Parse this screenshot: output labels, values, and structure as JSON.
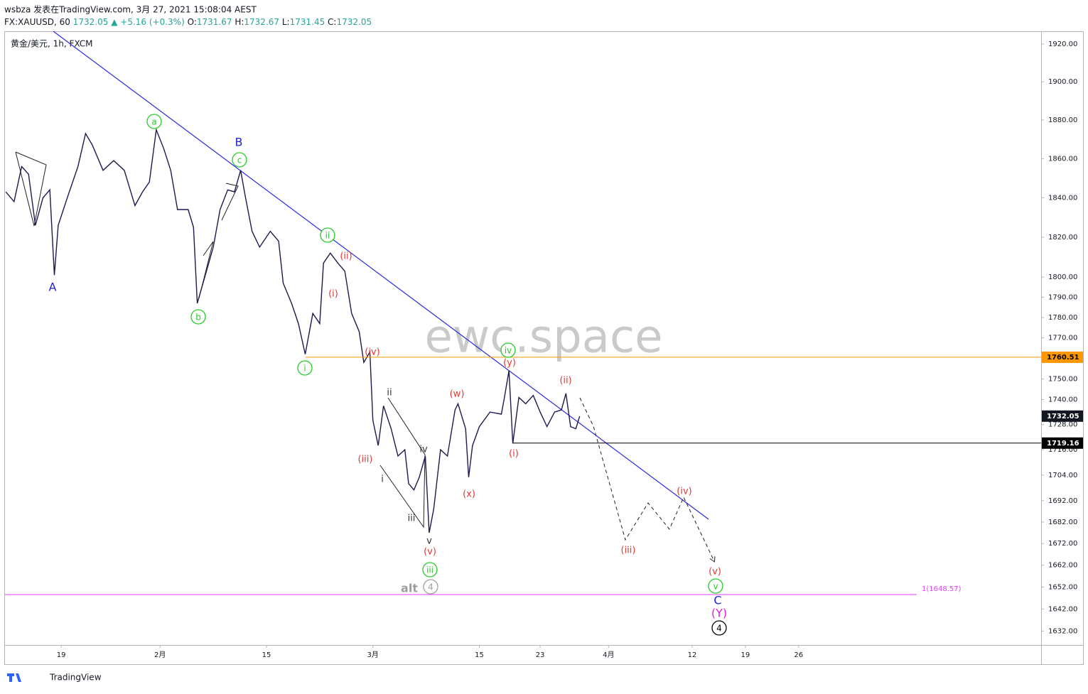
{
  "header": {
    "publisher": "wsbza 发表在TradingView.com, 3月 27, 2021 15:08:04 AEST",
    "symbol": "FX:XAUUSD, 60",
    "last": "1732.05",
    "change": "+5.16 (+0.3%)",
    "ohlc": [
      {
        "label": "O:",
        "value": "1731.67"
      },
      {
        "label": "H:",
        "value": "1732.67"
      },
      {
        "label": "L:",
        "value": "1731.45"
      },
      {
        "label": "C:",
        "value": "1732.05"
      }
    ]
  },
  "footer": {
    "brand": "TradingView"
  },
  "chart_data": {
    "type": "line",
    "title": "黄金/美元, 1h, FXCM",
    "watermark": "ewc.space",
    "color": "#1c1a4f",
    "log_scale": true,
    "grid": false,
    "x": [
      11.7,
      12.8,
      13.8,
      14.7,
      15.6,
      16.6,
      17.5,
      18.1,
      18.6,
      19.8,
      21.2,
      22.2,
      23.1,
      24.5,
      25.9,
      27.3,
      28.7,
      29.7,
      30.6,
      31.5,
      32.5,
      33.4,
      34.3,
      35.7,
      36.4,
      36.9,
      38.1,
      39.0,
      39.9,
      40.9,
      41.8,
      42.6,
      43.2,
      44.1,
      45.1,
      46.5,
      47.6,
      48.2,
      49.3,
      50.2,
      51.1,
      52.1,
      53.0,
      53.5,
      54.4,
      55.4,
      56.3,
      57.2,
      58.2,
      58.8,
      59.6,
      60.0,
      60.7,
      61.4,
      62.4,
      63.3,
      64.2,
      64.7,
      65.4,
      66.1,
      66.9,
      67.4,
      68.0,
      68.9,
      69.8,
      70.8,
      71.2,
      72.2,
      72.6,
      73.1,
      74.0,
      75.4,
      76.9,
      77.3,
      77.9,
      78.4,
      79.2,
      80.1,
      81.1,
      82.0,
      82.9,
      83.9,
      84.8,
      85.4,
      86.0,
      86.7,
      87.2
    ],
    "values": [
      1843,
      1838,
      1856,
      1852,
      1826,
      1840,
      1844,
      1801,
      1826,
      1840,
      1856,
      1873,
      1867,
      1854,
      1859,
      1854,
      1836,
      1843,
      1848,
      1875,
      1865,
      1854,
      1834,
      1834,
      1825,
      1787,
      1803,
      1815,
      1834,
      1844,
      1843,
      1854,
      1841,
      1823,
      1815,
      1823,
      1818,
      1797,
      1787,
      1777,
      1762,
      1782,
      1777,
      1807,
      1812,
      1807,
      1803,
      1782,
      1773,
      1758,
      1763,
      1730,
      1718,
      1737,
      1726,
      1713,
      1716,
      1700,
      1697,
      1703,
      1713,
      1677,
      1688,
      1716,
      1713,
      1735,
      1738,
      1726,
      1703,
      1718,
      1727,
      1734,
      1733,
      1741,
      1754,
      1719,
      1741,
      1738,
      1742,
      1734,
      1727,
      1734,
      1735,
      1743,
      1727,
      1726,
      1732
    ],
    "xlim": [
      11.6,
      147.9
    ],
    "ylim": [
      1625.7,
      1926.8
    ],
    "xticks": [
      19,
      {
        "value": 32,
        "label": "2月"
      },
      {
        "value": 46,
        "label": "15"
      },
      {
        "value": 60,
        "label": "3月"
      },
      {
        "value": 74,
        "label": "15"
      },
      {
        "value": 82,
        "label": "23"
      },
      {
        "value": 91,
        "label": "4月"
      },
      {
        "value": 102,
        "label": "12"
      },
      {
        "value": 109,
        "label": "19"
      },
      {
        "value": 116,
        "label": "26"
      }
    ],
    "yticks": [
      {
        "value": 1920,
        "label": "1920.00"
      },
      {
        "value": 1900,
        "label": "1900.00"
      },
      {
        "value": 1880,
        "label": "1880.00"
      },
      {
        "value": 1860,
        "label": "1860.00"
      },
      {
        "value": 1840,
        "label": "1840.00"
      },
      {
        "value": 1820,
        "label": "1820.00"
      },
      {
        "value": 1800,
        "label": "1800.00"
      },
      {
        "value": 1790,
        "label": "1790.00"
      },
      {
        "value": 1780,
        "label": "1780.00"
      },
      {
        "value": 1770,
        "label": "1770.00"
      },
      {
        "value": 1750,
        "label": "1750.00"
      },
      {
        "value": 1740,
        "label": "1740.00"
      },
      {
        "value": 1728,
        "label": "1728.00"
      },
      {
        "value": 1716,
        "label": "1716.00"
      },
      {
        "value": 1704,
        "label": "1704.00"
      },
      {
        "value": 1692,
        "label": "1692.00"
      },
      {
        "value": 1682,
        "label": "1682.00"
      },
      {
        "value": 1672,
        "label": "1672.00"
      },
      {
        "value": 1662,
        "label": "1662.00"
      },
      {
        "value": 1652,
        "label": "1652.00"
      },
      {
        "value": 1642,
        "label": "1642.00"
      },
      {
        "value": 1632,
        "label": "1632.00"
      }
    ],
    "hlines": [
      {
        "value": 1760.51,
        "color": "#ff9800"
      },
      {
        "value": 1719.16,
        "color": "#000000"
      },
      {
        "value": 1648.57,
        "color": "#e040fb",
        "label": "1(1648.57)"
      }
    ],
    "last_price": 1732.05,
    "annotations": [
      {
        "text": "A",
        "color": "#1f1fe0"
      },
      {
        "text": "B",
        "color": "#1f1fe0"
      },
      {
        "text": "C",
        "color": "#1f1fe0"
      },
      {
        "text": "a",
        "color": "#22cc22",
        "circled": true
      },
      {
        "text": "b",
        "color": "#22cc22",
        "circled": true
      },
      {
        "text": "c",
        "color": "#22cc22",
        "circled": true
      },
      {
        "text": "i",
        "color": "#22cc22",
        "circled": true
      },
      {
        "text": "ii",
        "color": "#22cc22",
        "circled": true
      },
      {
        "text": "iii",
        "color": "#22cc22",
        "circled": true
      },
      {
        "text": "iv",
        "color": "#22cc22",
        "circled": true
      },
      {
        "text": "v",
        "color": "#22cc22",
        "circled": true
      },
      {
        "text": "(i)",
        "color": "#e53935"
      },
      {
        "text": "(ii)",
        "color": "#e53935"
      },
      {
        "text": "(iv)",
        "color": "#e53935"
      },
      {
        "text": "(iii)",
        "color": "#e53935"
      },
      {
        "text": "(v)",
        "color": "#e53935"
      },
      {
        "text": "(w)",
        "color": "#e53935"
      },
      {
        "text": "(x)",
        "color": "#e53935"
      },
      {
        "text": "(y)",
        "color": "#e53935"
      },
      {
        "text": "(i)",
        "color": "#e53935"
      },
      {
        "text": "(ii)",
        "color": "#e53935"
      },
      {
        "text": "(iii)",
        "color": "#e53935"
      },
      {
        "text": "(iv)",
        "color": "#e53935"
      },
      {
        "text": "(v)",
        "color": "#e53935"
      },
      {
        "text": "ii",
        "color": "#333333"
      },
      {
        "text": "iv",
        "color": "#333333"
      },
      {
        "text": "i",
        "color": "#333333"
      },
      {
        "text": "iii",
        "color": "#333333"
      },
      {
        "text": "v",
        "color": "#333333"
      },
      {
        "text": "(Y)",
        "color": "#e020e0"
      },
      {
        "text": "4",
        "color": "#000000",
        "circled": true
      },
      {
        "text": "alt",
        "color": "#9e9e9e"
      },
      {
        "text": "4",
        "color": "#9e9e9e",
        "circled": true
      }
    ]
  }
}
